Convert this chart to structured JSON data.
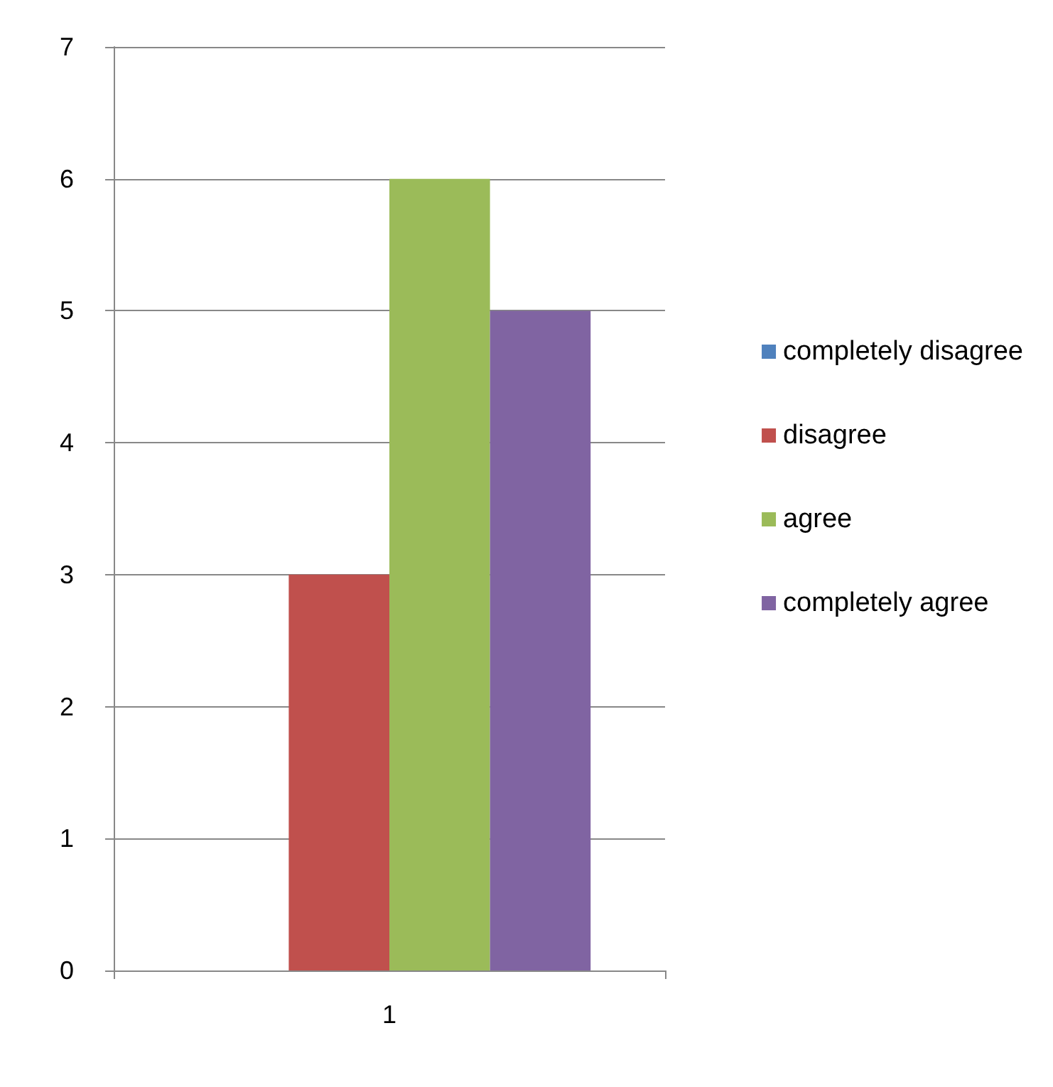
{
  "chart_data": {
    "type": "bar",
    "categories": [
      "1"
    ],
    "series": [
      {
        "name": "completely disagree",
        "color": "#4f81bd",
        "values": [
          0
        ]
      },
      {
        "name": "disagree",
        "color": "#c0504d",
        "values": [
          3
        ]
      },
      {
        "name": "agree",
        "color": "#9bbb59",
        "values": [
          6
        ]
      },
      {
        "name": "completely agree",
        "color": "#8064a2",
        "values": [
          5
        ]
      }
    ],
    "ylim": [
      0,
      7
    ],
    "yticks": [
      0,
      1,
      2,
      3,
      4,
      5,
      6,
      7
    ],
    "grid": "y",
    "legend": "right"
  }
}
